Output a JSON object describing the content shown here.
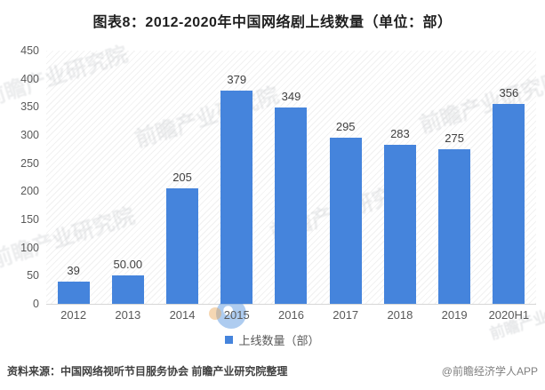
{
  "title": "图表8：2012-2020年中国网络剧上线数量（单位：部）",
  "chart_data": {
    "type": "bar",
    "categories": [
      "2012",
      "2013",
      "2014",
      "2015",
      "2016",
      "2017",
      "2018",
      "2019",
      "2020H1"
    ],
    "values": [
      39,
      50,
      205,
      379,
      349,
      295,
      283,
      275,
      356
    ],
    "value_labels": [
      "39",
      "50.00",
      "205",
      "379",
      "349",
      "295",
      "283",
      "275",
      "356"
    ],
    "series_name": "上线数量（部）",
    "title": "图表8：2012-2020年中国网络剧上线数量（单位：部）",
    "xlabel": "",
    "ylabel": "",
    "ylim": [
      0,
      450
    ],
    "yticks": [
      0,
      50,
      100,
      150,
      200,
      250,
      300,
      350,
      400,
      450
    ],
    "grid": false,
    "legend_position": "bottom",
    "bar_color": "#4584DC"
  },
  "legend": {
    "label": "上线数量（部）",
    "swatch_color": "#4584DC"
  },
  "footer": {
    "source": "资料来源：中国网络视听节目服务协会 前瞻产业研究院整理",
    "credit": "@前瞻经济学人APP"
  },
  "watermark": {
    "text": "前瞻产业研究院"
  }
}
